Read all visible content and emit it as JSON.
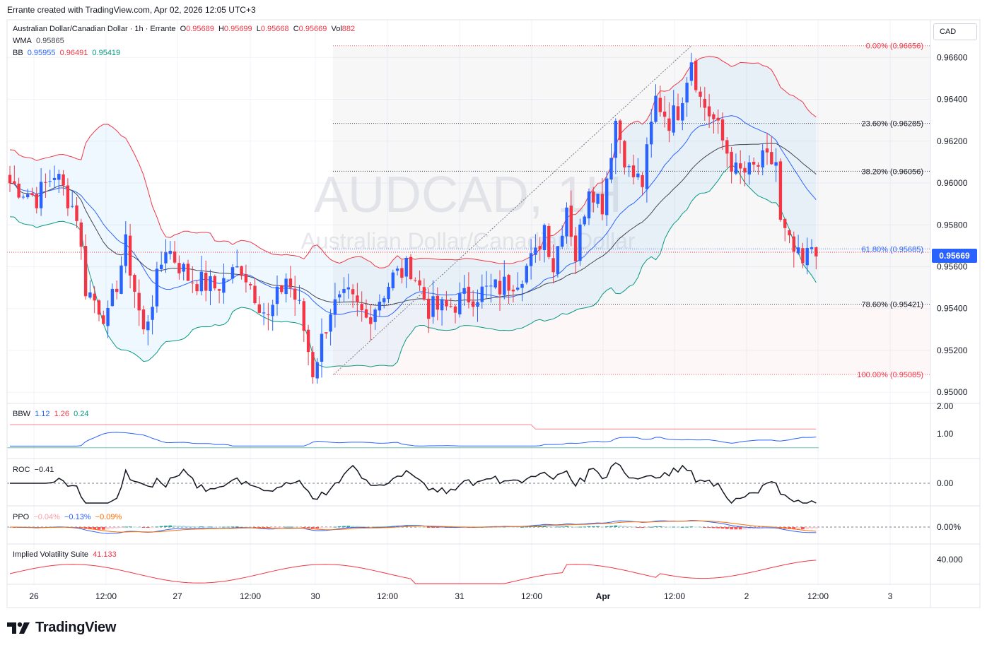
{
  "credit": "Errante created with TradingView.com, Apr 02, 2026 12:05 UTC+3",
  "brand": "TradingView",
  "currency_button": "CAD",
  "watermark": {
    "symbol": "AUDCAD, 1H",
    "name": "Australian Dollar/Canadian Dollar"
  },
  "legend": {
    "symbol": "Australian Dollar/Canadian Dollar · 1h · Errante",
    "o_label": "O",
    "o": "0.95689",
    "h_label": "H",
    "h": "0.95699",
    "l_label": "L",
    "l": "0.95668",
    "c_label": "C",
    "c": "0.95669",
    "vol_label": "Vol",
    "vol": "882",
    "wma_label": "WMA",
    "wma": "0.95865",
    "bb_label": "BB",
    "bb_basis": "0.95955",
    "bb_upper": "0.96491",
    "bb_lower": "0.95419"
  },
  "last_price": "0.95669",
  "colors": {
    "up": "#2962ff",
    "down": "#f23645",
    "bb_upper": "#f23645",
    "bb_basis": "#2962ff",
    "bb_lower": "#089981",
    "wma": "#434651"
  },
  "indicators": {
    "bbw": {
      "label": "BBW",
      "v1": "1.12",
      "v2": "1.26",
      "v3": "0.24"
    },
    "roc": {
      "label": "ROC",
      "v1": "−0.41"
    },
    "ppo": {
      "label": "PPO",
      "v1": "−0.04%",
      "v2": "−0.13%",
      "v3": "−0.09%"
    },
    "iv": {
      "label": "Implied Volatility Suite",
      "v1": "41.133"
    }
  },
  "chart_data": {
    "type": "candlestick",
    "title": "Australian Dollar/Canadian Dollar · 1h · Errante",
    "price_axis": {
      "ticks": [
        "0.96600",
        "0.96400",
        "0.96200",
        "0.96000",
        "0.95800",
        "0.95600",
        "0.95400",
        "0.95200",
        "0.95000"
      ],
      "range": [
        0.9495,
        0.9678
      ]
    },
    "time_axis": {
      "ticks": [
        "26",
        "12:00",
        "27",
        "12:00",
        "30",
        "12:00",
        "31",
        "12:00",
        "Apr",
        "12:00",
        "2",
        "12:00",
        "3"
      ]
    },
    "fibonacci": [
      {
        "label": "0.00% (0.96656)",
        "price": 0.96656
      },
      {
        "label": "23.60% (0.96285)",
        "price": 0.96285
      },
      {
        "label": "38.20% (0.96056)",
        "price": 0.96056
      },
      {
        "label": "61.80% (0.95685)",
        "price": 0.95685
      },
      {
        "label": "78.60% (0.95421)",
        "price": 0.95421
      },
      {
        "label": "100.00% (0.95085)",
        "price": 0.95085
      }
    ],
    "bbw_axis": [
      "2.00",
      "1.00"
    ],
    "roc_axis": [
      "0.00"
    ],
    "ppo_axis": [
      "0.00%"
    ],
    "iv_axis": [
      "40.000"
    ],
    "close_anchors": [
      [
        0,
        0.96
      ],
      [
        6,
        0.9593
      ],
      [
        10,
        0.9605
      ],
      [
        15,
        0.9585
      ],
      [
        17,
        0.955
      ],
      [
        22,
        0.9535
      ],
      [
        26,
        0.957
      ],
      [
        30,
        0.9528
      ],
      [
        35,
        0.957
      ],
      [
        40,
        0.9555
      ],
      [
        46,
        0.955
      ],
      [
        52,
        0.956
      ],
      [
        58,
        0.9535
      ],
      [
        62,
        0.9555
      ],
      [
        65,
        0.954
      ],
      [
        68,
        0.951
      ],
      [
        72,
        0.954
      ],
      [
        76,
        0.9545
      ],
      [
        80,
        0.9535
      ],
      [
        86,
        0.9555
      ],
      [
        90,
        0.956
      ],
      [
        94,
        0.954
      ],
      [
        98,
        0.954
      ],
      [
        102,
        0.9545
      ],
      [
        106,
        0.9548
      ],
      [
        110,
        0.955
      ],
      [
        114,
        0.9555
      ],
      [
        118,
        0.9565
      ],
      [
        120,
        0.958
      ],
      [
        122,
        0.956
      ],
      [
        125,
        0.959
      ],
      [
        127,
        0.9565
      ],
      [
        130,
        0.96
      ],
      [
        133,
        0.959
      ],
      [
        136,
        0.963
      ],
      [
        139,
        0.9605
      ],
      [
        142,
        0.96
      ],
      [
        145,
        0.964
      ],
      [
        148,
        0.963
      ],
      [
        150,
        0.9635
      ],
      [
        153,
        0.966
      ],
      [
        155,
        0.964
      ],
      [
        158,
        0.963
      ],
      [
        160,
        0.962
      ],
      [
        163,
        0.9605
      ],
      [
        166,
        0.9605
      ],
      [
        169,
        0.961
      ],
      [
        172,
        0.961
      ],
      [
        173,
        0.958
      ],
      [
        175,
        0.957
      ],
      [
        178,
        0.956
      ],
      [
        180,
        0.957
      ],
      [
        181,
        0.957
      ]
    ]
  }
}
